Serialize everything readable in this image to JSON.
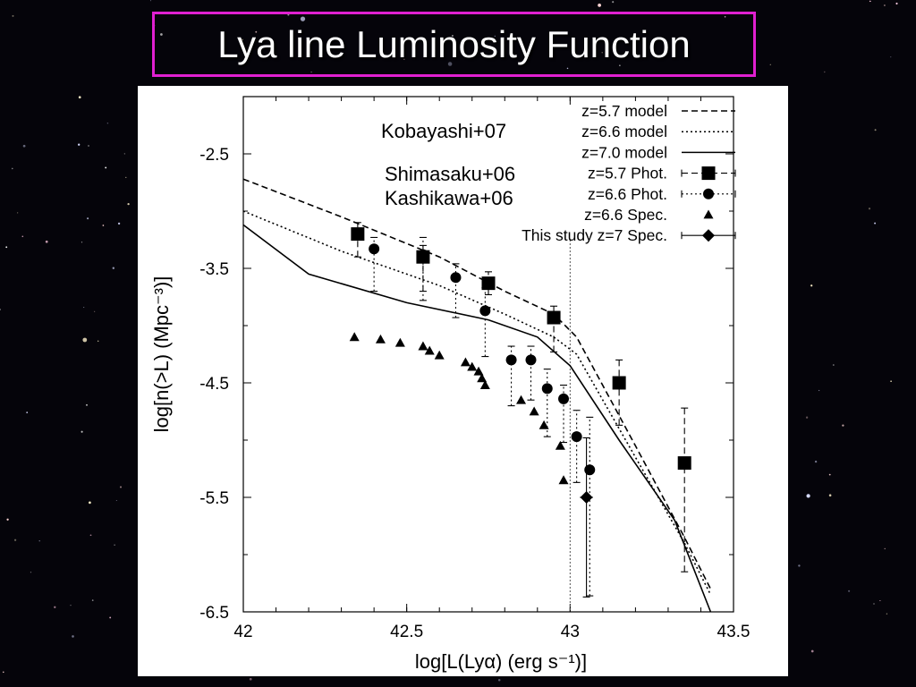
{
  "slide": {
    "title": "Lya line Luminosity Function"
  },
  "colors": {
    "background": "#05040a",
    "title_border": "#e020d0",
    "plot_bg": "#ffffff",
    "ink": "#000000"
  },
  "chart_data": {
    "type": "scatter",
    "xlabel": "log[L(Lyα) (erg s⁻¹)]",
    "ylabel": "log[n(>L) (Mpc⁻³)]",
    "xlim": [
      42,
      43.5
    ],
    "ylim": [
      -6.5,
      -2.0
    ],
    "x_ticks": [
      42,
      42.5,
      43,
      43.5
    ],
    "x_tick_labels": [
      "42",
      "42.5",
      "43",
      "43.5"
    ],
    "y_ticks": [
      -2.5,
      -3.5,
      -4.5,
      -5.5,
      -6.5
    ],
    "y_tick_labels": [
      "-2.5",
      "-3.5",
      "-4.5",
      "-5.5",
      "-6.5"
    ],
    "grid": false,
    "legend_position": "top-right",
    "annotations": [
      {
        "text": "Kobayashi+07"
      },
      {
        "text": "Shimasaku+06"
      },
      {
        "text": "Kashikawa+06"
      }
    ],
    "reference_line": {
      "x": 43.0
    },
    "series": [
      {
        "name": "z=5.7 model",
        "kind": "line",
        "style": "dashed",
        "x": [
          42.0,
          42.3,
          42.6,
          42.8,
          42.95,
          43.02,
          43.2,
          43.35,
          43.43
        ],
        "y": [
          -2.72,
          -3.05,
          -3.4,
          -3.7,
          -3.9,
          -4.1,
          -5.05,
          -5.85,
          -6.3
        ]
      },
      {
        "name": "z=6.6 model",
        "kind": "line",
        "style": "dotted",
        "x": [
          42.0,
          42.3,
          42.6,
          42.8,
          42.95,
          43.02,
          43.2,
          43.35,
          43.43
        ],
        "y": [
          -3.0,
          -3.35,
          -3.65,
          -3.9,
          -4.1,
          -4.25,
          -5.15,
          -5.9,
          -6.35
        ]
      },
      {
        "name": "z=7.0 model",
        "kind": "line",
        "style": "solid",
        "x": [
          42.0,
          42.2,
          42.5,
          42.75,
          42.9,
          43.0,
          43.15,
          43.32,
          43.43
        ],
        "y": [
          -3.12,
          -3.55,
          -3.8,
          -3.95,
          -4.1,
          -4.35,
          -5.0,
          -5.7,
          -6.5
        ]
      },
      {
        "name": "z=5.7 Phot.",
        "kind": "points",
        "marker": "square",
        "line_style": "dashed",
        "x": [
          42.35,
          42.55,
          42.75,
          42.95,
          43.15,
          43.35
        ],
        "y": [
          -3.2,
          -3.4,
          -3.63,
          -3.93,
          -4.5,
          -5.2
        ],
        "err_lo": [
          0.2,
          0.3,
          0.1,
          0.3,
          0.37,
          0.95
        ],
        "err_hi": [
          0.1,
          0.1,
          0.1,
          0.1,
          0.2,
          0.48
        ]
      },
      {
        "name": "z=6.6 Phot.",
        "kind": "points",
        "marker": "circle",
        "line_style": "dotted",
        "x": [
          42.4,
          42.55,
          42.65,
          42.74,
          42.82,
          42.88,
          42.93,
          42.98,
          43.02,
          43.06
        ],
        "y": [
          -3.33,
          -3.38,
          -3.58,
          -3.87,
          -4.3,
          -4.3,
          -4.55,
          -4.64,
          -4.97,
          -5.26
        ],
        "err_lo": [
          0.37,
          0.4,
          0.35,
          0.4,
          0.4,
          0.35,
          0.42,
          0.38,
          0.4,
          1.1
        ],
        "err_hi": [
          0.1,
          0.15,
          0.12,
          0.2,
          0.12,
          0.12,
          0.17,
          0.12,
          0.23,
          0.46
        ]
      },
      {
        "name": "z=6.6 Spec.",
        "kind": "points",
        "marker": "triangle",
        "x": [
          42.34,
          42.42,
          42.48,
          42.55,
          42.57,
          42.6,
          42.68,
          42.7,
          42.72,
          42.73,
          42.74,
          42.85,
          42.89,
          42.92,
          42.97,
          42.98
        ],
        "y": [
          -4.1,
          -4.12,
          -4.15,
          -4.18,
          -4.22,
          -4.26,
          -4.32,
          -4.36,
          -4.4,
          -4.46,
          -4.52,
          -4.65,
          -4.75,
          -4.87,
          -5.05,
          -5.35
        ]
      },
      {
        "name": "This study z=7 Spec.",
        "kind": "points",
        "marker": "diamond",
        "line_style": "solid",
        "x": [
          43.05
        ],
        "y": [
          -5.5
        ],
        "err_lo": [
          0.87
        ],
        "err_hi": [
          0.52
        ],
        "xerr": [
          0.02
        ]
      }
    ]
  }
}
